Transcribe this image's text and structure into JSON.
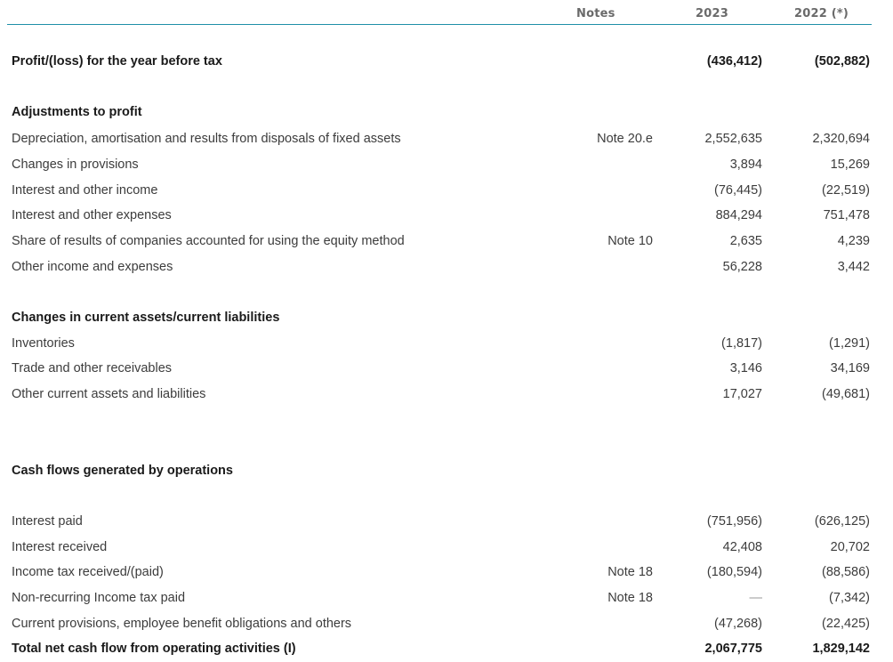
{
  "header": {
    "notes": "Notes",
    "y2023": "2023",
    "y2022": "2022 (*)"
  },
  "rows": [
    {
      "label": "Profit/(loss) for the year before tax",
      "note": "",
      "v2023": "(436,412)",
      "v2022": "(502,882)",
      "bold": true
    },
    {
      "label": "Adjustments to profit",
      "note": "",
      "v2023": "",
      "v2022": "",
      "bold": true
    },
    {
      "label": "Depreciation, amortisation and results from disposals of fixed assets",
      "note": "Note 20.e",
      "v2023": "2,552,635",
      "v2022": "2,320,694"
    },
    {
      "label": "Changes in provisions",
      "note": "",
      "v2023": "3,894",
      "v2022": "15,269"
    },
    {
      "label": "Interest and other income",
      "note": "",
      "v2023": "(76,445)",
      "v2022": "(22,519)"
    },
    {
      "label": "Interest and other expenses",
      "note": "",
      "v2023": "884,294",
      "v2022": "751,478"
    },
    {
      "label": "Share of results of companies accounted for using the equity method",
      "note": "Note 10",
      "v2023": "2,635",
      "v2022": "4,239"
    },
    {
      "label": "Other income and expenses",
      "note": "",
      "v2023": "56,228",
      "v2022": "3,442"
    },
    {
      "label": "Changes in current assets/current liabilities",
      "note": "",
      "v2023": "",
      "v2022": "",
      "bold": true
    },
    {
      "label": "Inventories",
      "note": "",
      "v2023": "(1,817)",
      "v2022": "(1,291)"
    },
    {
      "label": "Trade and other receivables",
      "note": "",
      "v2023": "3,146",
      "v2022": "34,169"
    },
    {
      "label": "Other current assets and liabilities",
      "note": "",
      "v2023": "17,027",
      "v2022": "(49,681)"
    },
    {
      "label": "Cash flows generated by operations",
      "note": "",
      "v2023": "",
      "v2022": "",
      "bold": true
    },
    {
      "label": "Interest paid",
      "note": "",
      "v2023": "(751,956)",
      "v2022": "(626,125)"
    },
    {
      "label": "Interest received",
      "note": "",
      "v2023": "42,408",
      "v2022": "20,702"
    },
    {
      "label": "Income tax received/(paid)",
      "note": "Note 18",
      "v2023": "(180,594)",
      "v2022": "(88,586)"
    },
    {
      "label": "Non-recurring Income tax paid",
      "note": "Note 18",
      "v2023": "—",
      "v2022": "(7,342)"
    },
    {
      "label": "Current provisions, employee benefit obligations and others",
      "note": "",
      "v2023": "(47,268)",
      "v2022": "(22,425)"
    },
    {
      "label": "Total net cash flow from operating activities (I)",
      "note": "",
      "v2023": "2,067,775",
      "v2022": "1,829,142",
      "bold": true
    }
  ]
}
